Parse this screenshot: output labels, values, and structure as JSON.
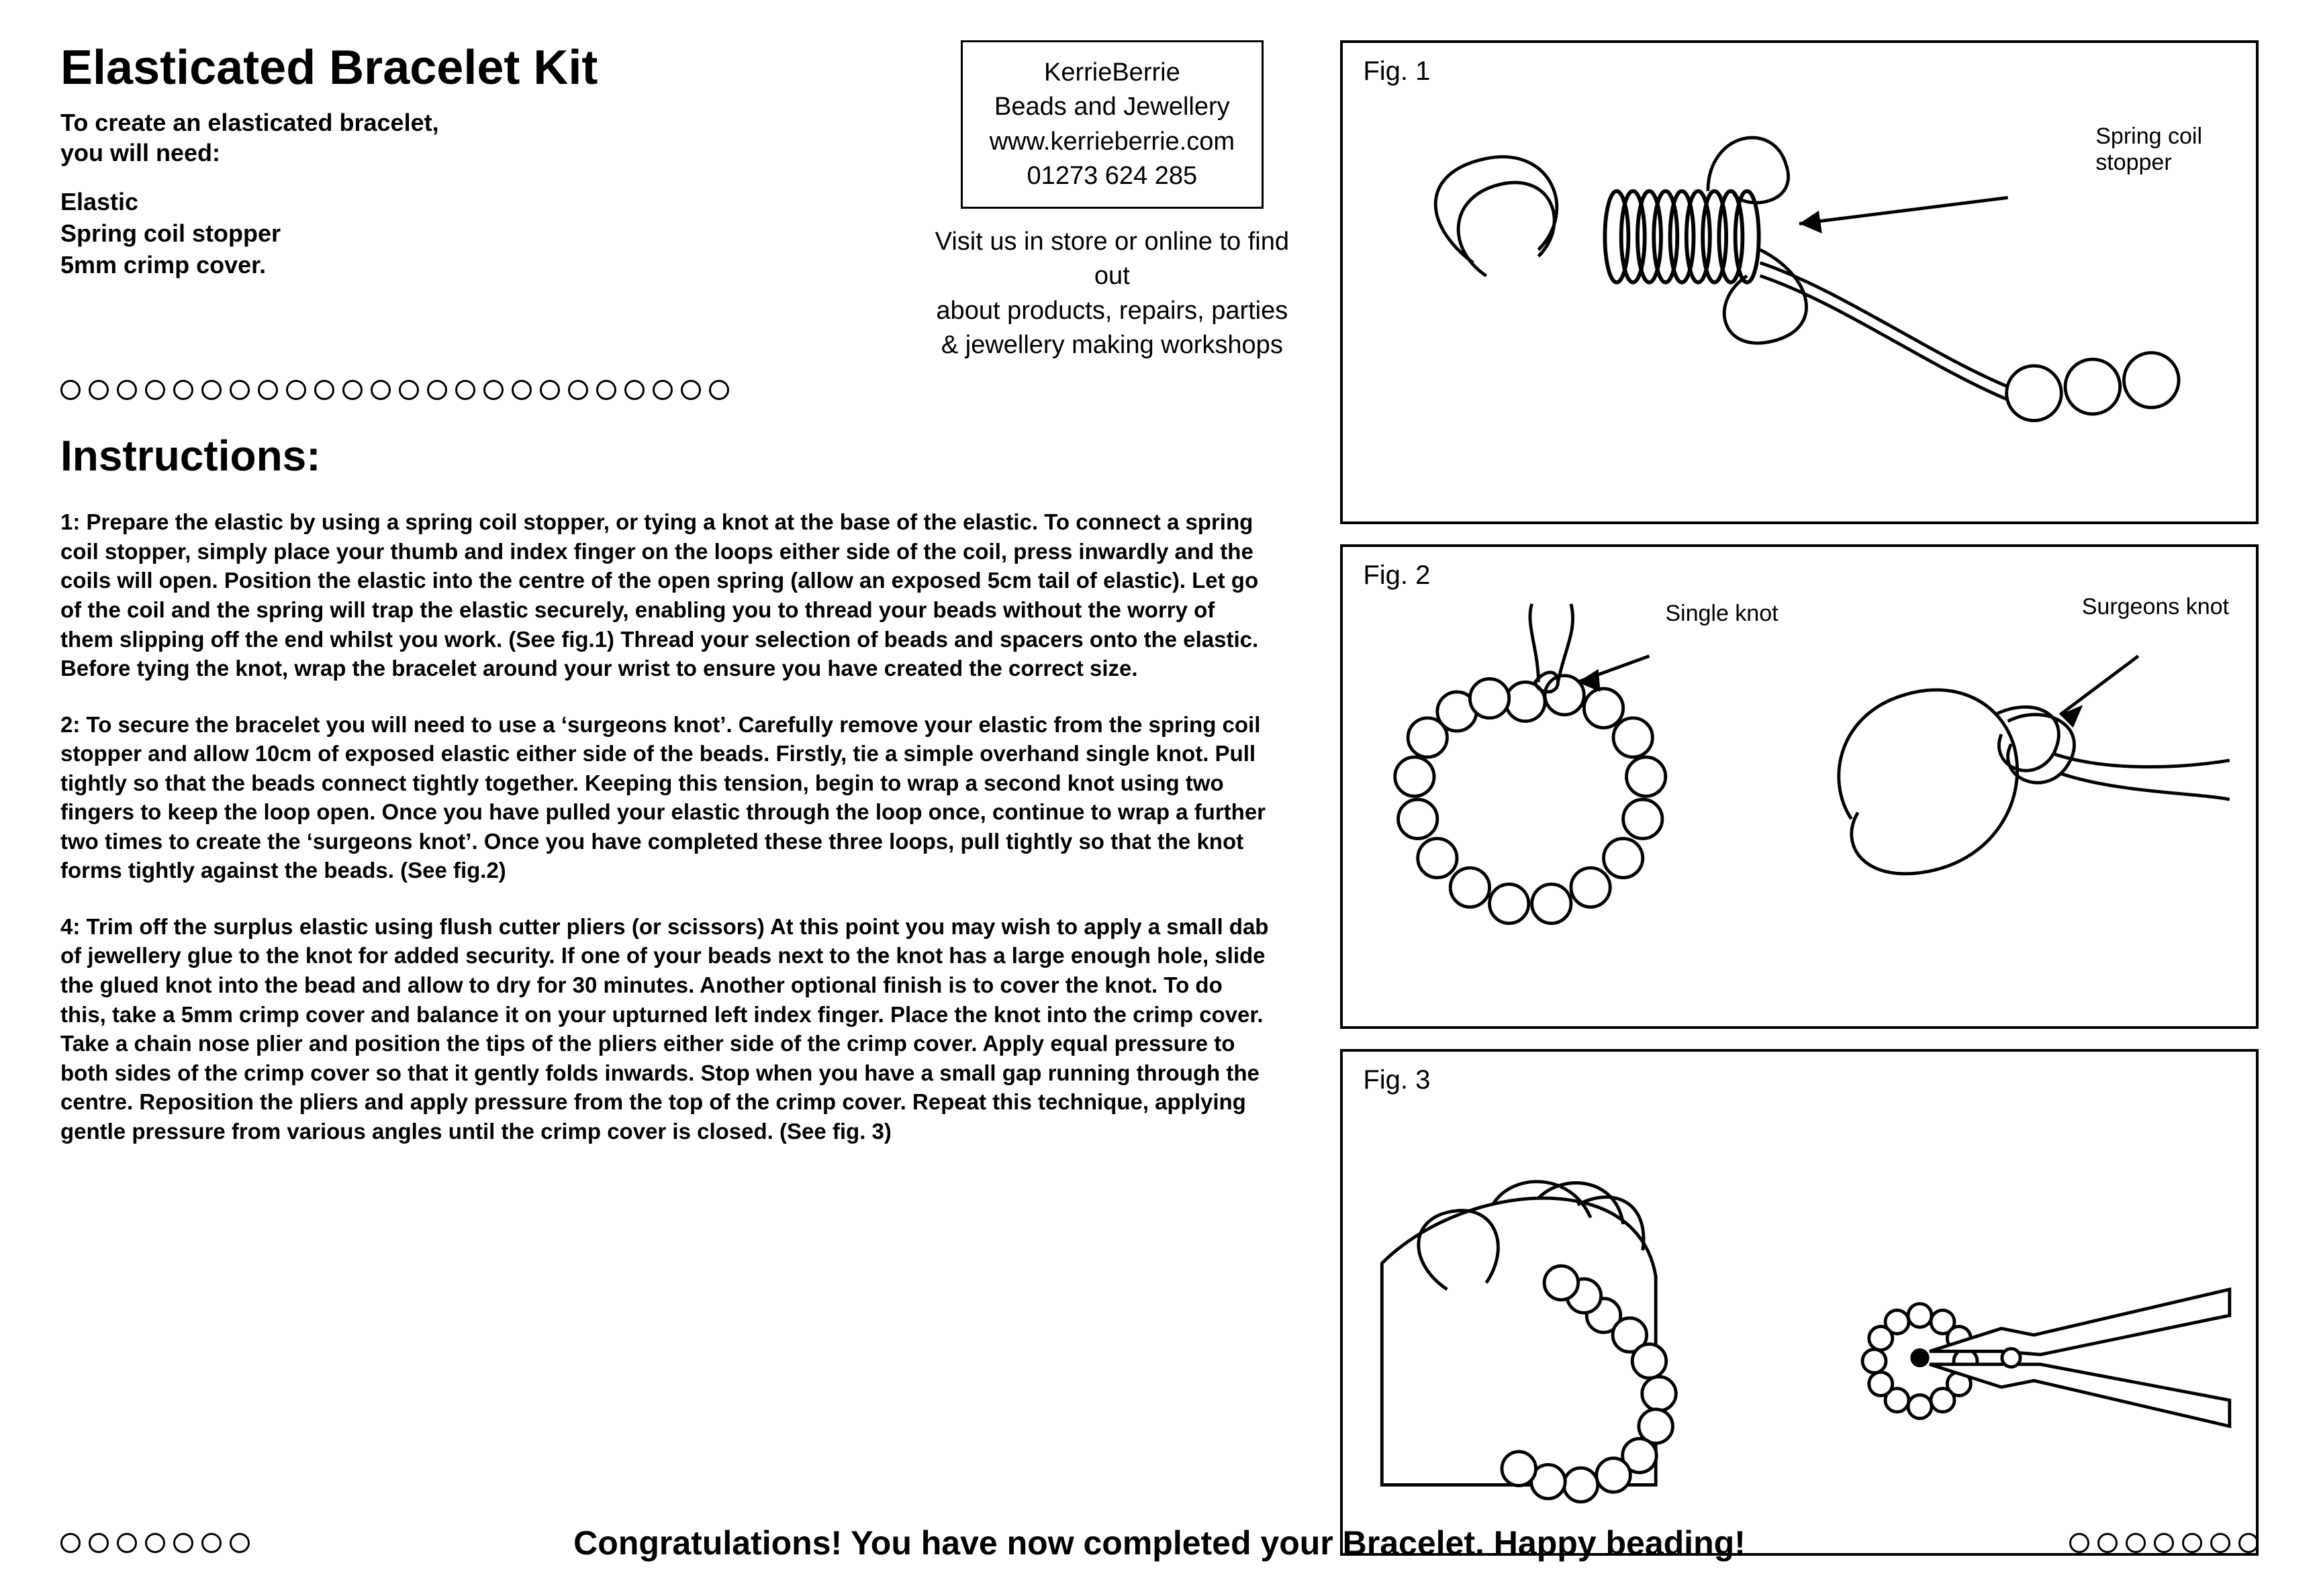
{
  "title": "Elasticated Bracelet Kit",
  "intro": "To create an elasticated bracelet,\nyou will need:",
  "materials": "Elastic\nSpring coil stopper\n5mm crimp cover.",
  "brand": {
    "name": "KerrieBerrie",
    "line2": "Beads and Jewellery",
    "web": "www.kerrieberrie.com",
    "phone": "01273 624 285"
  },
  "visit": "Visit us in store or online to find out\nabout products, repairs, parties\n& jewellery making workshops",
  "instructions_heading": "Instructions:",
  "steps": {
    "s1": "1: Prepare the elastic by using a spring coil stopper, or tying a knot at the base of the elastic. To connect a spring coil stopper, simply place your thumb and index finger on the loops either side of the coil, press inwardly and the coils will open. Position the elastic into the centre of the open spring (allow an exposed 5cm tail of elastic). Let go of the coil and the spring will trap the elastic securely, enabling you to thread your beads without the worry of them slipping off the end whilst you work. (See fig.1) Thread your selection of beads and spacers onto the elastic. Before tying the knot, wrap the bracelet around your wrist to ensure you have created the correct size.",
    "s2": "2: To secure the bracelet you will need to use a ‘surgeons knot’. Carefully remove your elastic from the spring coil stopper and allow 10cm of exposed elastic either side of the beads. Firstly, tie a simple overhand single knot. Pull tightly so that the beads connect tightly together. Keeping this tension, begin to wrap a second knot using two fingers to keep the loop open. Once you have pulled your elastic through the loop once, continue to wrap a further two times to create the ‘surgeons knot’. Once you have completed these three loops, pull tightly so that the knot forms tightly against the beads. (See fig.2)",
    "s3": "4: Trim off the surplus elastic using flush cutter pliers (or scissors) At this point you may wish to apply a small dab of jewellery glue to the knot for added security. If one of your beads next to the knot has a large enough hole, slide the glued knot into the bead and allow to dry for 30 minutes. Another optional finish is to cover the knot. To do this, take a 5mm crimp cover and balance it on your upturned left index finger. Place the knot into the crimp cover. Take a chain nose plier and position the tips of the pliers either side of the crimp cover. Apply equal pressure to both sides of the crimp cover so that it gently folds inwards. Stop when you have a small gap running through the centre. Reposition the pliers and apply pressure from the top of the crimp cover. Repeat this technique, applying gentle pressure from various angles until the crimp cover is closed. (See fig. 3)"
  },
  "figs": {
    "f1": {
      "label": "Fig. 1",
      "anno": "Spring coil\nstopper"
    },
    "f2": {
      "label": "Fig. 2",
      "anno_left": "Single knot",
      "anno_right": "Surgeons knot"
    },
    "f3": {
      "label": "Fig. 3"
    }
  },
  "footer": "Congratulations! You have now completed your Bracelet. Happy beading!",
  "decor": {
    "top_circle_count": 24,
    "footer_circle_count": 7
  },
  "colors": {
    "text": "#000000",
    "bg": "#ffffff",
    "stroke": "#000000"
  }
}
